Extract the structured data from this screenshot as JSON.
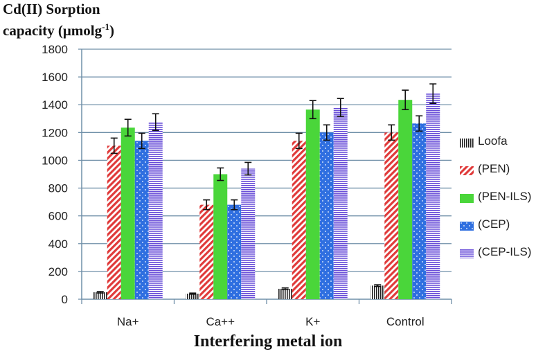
{
  "chart_data": {
    "type": "bar",
    "title": "",
    "ylabel_line1": "Cd(II) Sorption",
    "ylabel_line2": "capacity (μmolg",
    "ylabel_sup": "-1",
    "ylabel_close": ")",
    "xlabel": "Interfering metal ion",
    "categories": [
      "Na+",
      "Ca++",
      "K+",
      "Control"
    ],
    "ylim": [
      0,
      1800
    ],
    "yticks": [
      0,
      200,
      400,
      600,
      800,
      1000,
      1200,
      1400,
      1600,
      1800
    ],
    "grid": true,
    "legend_position": "right",
    "series": [
      {
        "name": "Loofa",
        "values": [
          50,
          40,
          75,
          98
        ],
        "errors": [
          5,
          4,
          6,
          6
        ],
        "color": "#222222",
        "pattern": "vertical-lines"
      },
      {
        "name": "(PEN)",
        "values": [
          1105,
          680,
          1140,
          1200
        ],
        "errors": [
          55,
          35,
          55,
          55
        ],
        "color": "#e03a3a",
        "pattern": "diagonal-stripes"
      },
      {
        "name": "(PEN-ILS)",
        "values": [
          1235,
          900,
          1365,
          1435
        ],
        "errors": [
          60,
          45,
          65,
          70
        ],
        "color": "#4ad63a",
        "pattern": "solid"
      },
      {
        "name": "(CEP)",
        "values": [
          1140,
          680,
          1200,
          1265
        ],
        "errors": [
          55,
          35,
          55,
          55
        ],
        "color": "#2f6fe0",
        "pattern": "dotted"
      },
      {
        "name": "(CEP-ILS)",
        "values": [
          1275,
          940,
          1380,
          1480
        ],
        "errors": [
          60,
          45,
          65,
          70
        ],
        "color": "#6a4fd8",
        "pattern": "horizontal-lines"
      }
    ]
  }
}
